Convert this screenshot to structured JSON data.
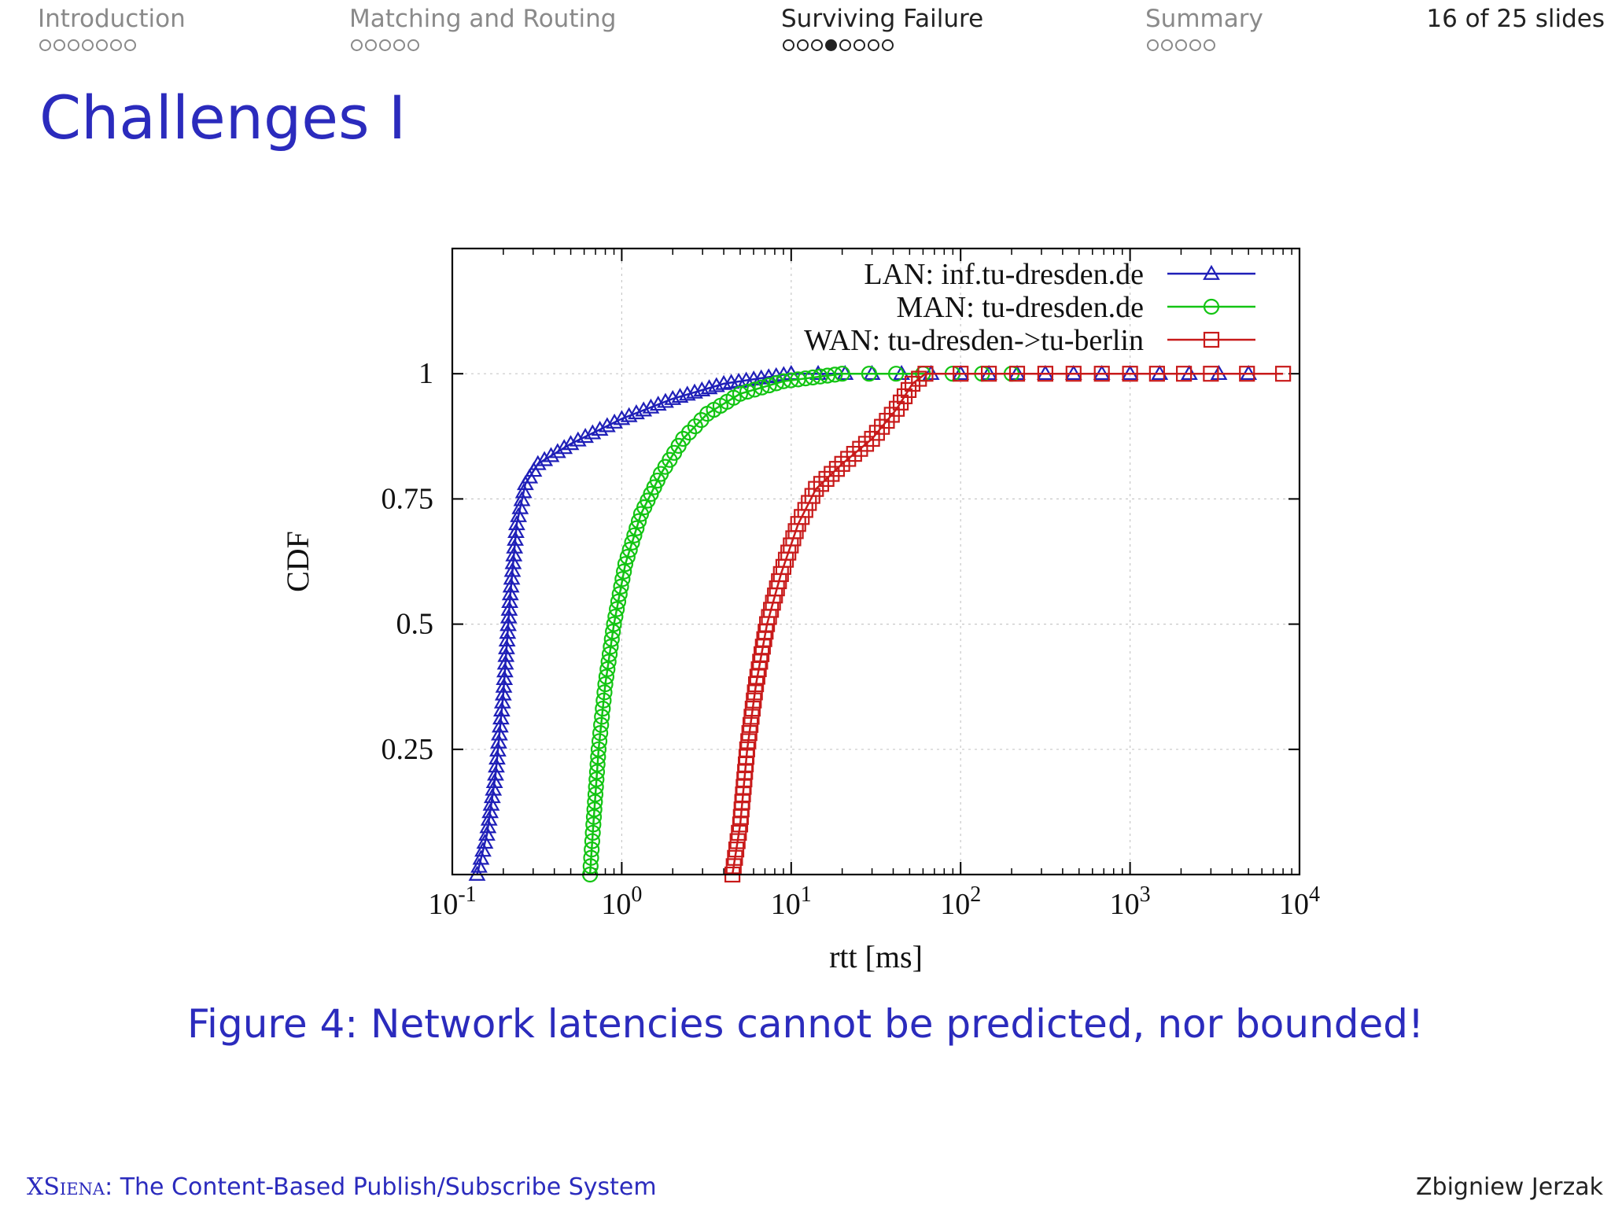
{
  "nav": {
    "sections": [
      {
        "label": "Introduction",
        "dots": 7,
        "current": -1,
        "active": false
      },
      {
        "label": "Matching and Routing",
        "dots": 5,
        "current": -1,
        "active": false
      },
      {
        "label": "Surviving Failure",
        "dots": 8,
        "current": 3,
        "active": true
      },
      {
        "label": "Summary",
        "dots": 5,
        "current": -1,
        "active": false
      }
    ],
    "counter": "16 of 25 slides"
  },
  "slide": {
    "title": "Challenges I"
  },
  "caption": "Figure 4: Network latencies cannot be predicted, nor bounded!",
  "footer": {
    "brand": "XSiena",
    "text": ": The Content-Based Publish/Subscribe System",
    "author": "Zbigniew Jerzak"
  },
  "chart_data": {
    "type": "line",
    "xlabel": "rtt [ms]",
    "ylabel": "CDF",
    "x_scale": "log",
    "xlim": [
      0.1,
      10000
    ],
    "ylim": [
      0,
      1.25
    ],
    "x_tick_labels": [
      "10-1",
      "100",
      "101",
      "102",
      "103",
      "104"
    ],
    "x_ticks": [
      0.1,
      1,
      10,
      100,
      1000,
      10000
    ],
    "y_ticks": [
      0.25,
      0.5,
      0.75,
      1
    ],
    "y_tick_labels": [
      "0.25",
      "0.5",
      "0.75",
      "1"
    ],
    "grid": true,
    "legend_position": "top-right",
    "series": [
      {
        "name": "LAN: inf.tu-dresden.de",
        "color": "#1f1fb8",
        "marker": "triangle",
        "points": [
          [
            0.14,
            0.0
          ],
          [
            0.16,
            0.08
          ],
          [
            0.18,
            0.2
          ],
          [
            0.2,
            0.36
          ],
          [
            0.22,
            0.56
          ],
          [
            0.24,
            0.7
          ],
          [
            0.27,
            0.78
          ],
          [
            0.32,
            0.82
          ],
          [
            0.5,
            0.86
          ],
          [
            1.0,
            0.91
          ],
          [
            2.0,
            0.95
          ],
          [
            4.0,
            0.98
          ],
          [
            10.0,
            1.0
          ],
          [
            30.0,
            1.0
          ],
          [
            100.0,
            1.0
          ],
          [
            1000.0,
            1.0
          ],
          [
            5000.0,
            1.0
          ]
        ]
      },
      {
        "name": "MAN: tu-dresden.de",
        "color": "#13c413",
        "marker": "circle",
        "points": [
          [
            0.65,
            0.0
          ],
          [
            0.68,
            0.1
          ],
          [
            0.73,
            0.25
          ],
          [
            0.8,
            0.38
          ],
          [
            0.9,
            0.5
          ],
          [
            1.05,
            0.62
          ],
          [
            1.3,
            0.72
          ],
          [
            1.7,
            0.8
          ],
          [
            2.3,
            0.87
          ],
          [
            3.2,
            0.92
          ],
          [
            5.0,
            0.96
          ],
          [
            9.0,
            0.985
          ],
          [
            20.0,
            1.0
          ],
          [
            60.0,
            1.0
          ],
          [
            200.0,
            1.0
          ]
        ]
      },
      {
        "name": "WAN: tu-dresden->tu-berlin",
        "color": "#c81a1a",
        "marker": "square",
        "points": [
          [
            4.5,
            0.0
          ],
          [
            5.0,
            0.1
          ],
          [
            5.5,
            0.25
          ],
          [
            6.2,
            0.38
          ],
          [
            7.2,
            0.5
          ],
          [
            8.7,
            0.6
          ],
          [
            11.0,
            0.7
          ],
          [
            14.0,
            0.77
          ],
          [
            20.0,
            0.82
          ],
          [
            30.0,
            0.87
          ],
          [
            42.0,
            0.93
          ],
          [
            52.0,
            0.98
          ],
          [
            62.0,
            1.0
          ],
          [
            100.0,
            1.0
          ],
          [
            1000.0,
            1.0
          ],
          [
            3000.0,
            1.0
          ],
          [
            8000.0,
            1.0
          ]
        ]
      }
    ]
  }
}
